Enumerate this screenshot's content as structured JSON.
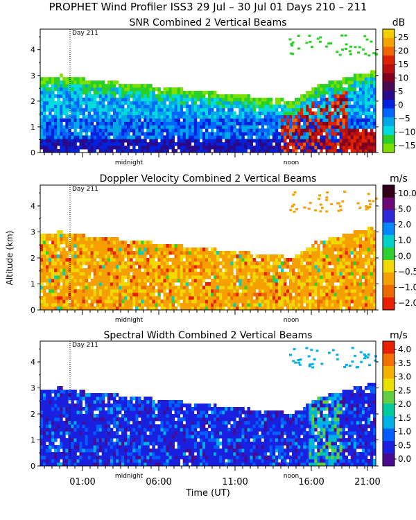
{
  "title": "PROPHET Wind Profiler ISS3  29 Jul – 30 Jul 01 Days 210 – 211",
  "ylabel": "Altitude (km)",
  "xlabel": "Time (UT)",
  "chart_data": [
    {
      "type": "heatmap",
      "title": "SNR Combined 2 Vertical Beams",
      "colorbar_unit": "dB",
      "colorbar_ticks": [
        "25",
        "20",
        "15",
        "10",
        "5",
        "0",
        "−5",
        "−10",
        "−15"
      ],
      "colorbar_colors": [
        "#f2d000",
        "#f5a200",
        "#ee6600",
        "#dd2200",
        "#b81010",
        "#800020",
        "#4a0a55",
        "#2a0a8a",
        "#0022dd",
        "#0066ff",
        "#00a8e8",
        "#00dcdc",
        "#28d028",
        "#7ce000"
      ],
      "day_marker": "Day 211",
      "time_markers": [
        "midnight",
        "noon"
      ],
      "ylim": [
        0,
        4.8
      ],
      "yticks": [
        "0",
        "1",
        "2",
        "3",
        "4"
      ]
    },
    {
      "type": "heatmap",
      "title": "Doppler Velocity Combined 2 Vertical Beams",
      "colorbar_unit": "m/s",
      "colorbar_ticks": [
        "10.0",
        "5.0",
        "2.0",
        "1.0",
        "0.0",
        "−0.5",
        "−1.0",
        "−2.0"
      ],
      "colorbar_colors": [
        "#300018",
        "#6a0a78",
        "#2a2ad8",
        "#0088ff",
        "#00d0c8",
        "#30d030",
        "#f0d800",
        "#f5a000",
        "#ee6a00",
        "#e82000"
      ],
      "day_marker": "Day 211",
      "time_markers": [
        "midnight",
        "noon"
      ],
      "ylim": [
        0,
        4.8
      ],
      "yticks": [
        "0",
        "1",
        "2",
        "3",
        "4"
      ]
    },
    {
      "type": "heatmap",
      "title": "Spectral Width Combined 2 Vertical Beams",
      "colorbar_unit": "m/s",
      "colorbar_ticks": [
        "4.0",
        "3.5",
        "3.0",
        "2.5",
        "2.0",
        "1.5",
        "1.0",
        "0.5",
        "0.0"
      ],
      "colorbar_colors": [
        "#e82000",
        "#f07000",
        "#f5b000",
        "#e8e000",
        "#60d040",
        "#00c8a0",
        "#00b0e8",
        "#0060ff",
        "#1a20e0",
        "#4a0a90"
      ],
      "day_marker": "Day 211",
      "time_markers": [
        "midnight",
        "noon"
      ],
      "ylim": [
        0,
        4.8
      ],
      "yticks": [
        "0",
        "1",
        "2",
        "3",
        "4"
      ],
      "xtick_labels": [
        "01:00",
        "06:00",
        "11:00",
        "16:00",
        "21:00"
      ]
    }
  ]
}
